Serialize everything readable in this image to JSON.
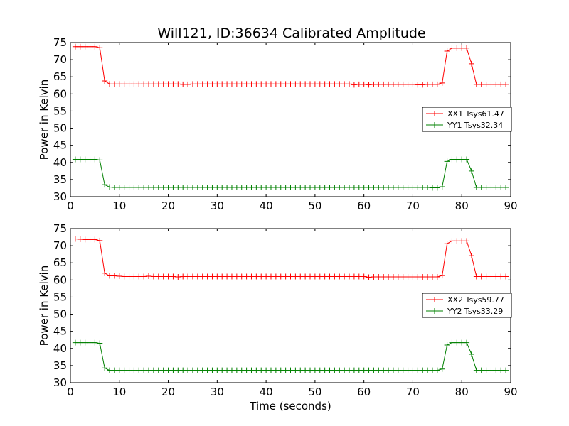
{
  "figure_title": "Will121, ID:36634 Calibrated Amplitude",
  "colors": {
    "red": "#ff0000",
    "green": "#008000",
    "axis": "#000000"
  },
  "chart_data": [
    {
      "type": "line",
      "title": "Will121, ID:36634 Calibrated Amplitude",
      "xlabel": "",
      "ylabel": "Power in Kelvin",
      "xlim": [
        0,
        90
      ],
      "ylim": [
        30,
        75
      ],
      "xticks": [
        0,
        10,
        20,
        30,
        40,
        50,
        60,
        70,
        80,
        90
      ],
      "yticks": [
        30,
        35,
        40,
        45,
        50,
        55,
        60,
        65,
        70,
        75
      ],
      "legend_position": "center-right",
      "series": [
        {
          "name": "XX1 Tsys61.47",
          "color": "#ff0000",
          "marker": "+",
          "x": [
            1,
            2,
            3,
            4,
            5,
            6,
            7,
            8,
            9,
            10,
            11,
            12,
            13,
            14,
            15,
            16,
            17,
            18,
            19,
            20,
            21,
            22,
            23,
            24,
            25,
            26,
            27,
            28,
            29,
            30,
            31,
            32,
            33,
            34,
            35,
            36,
            37,
            38,
            39,
            40,
            41,
            42,
            43,
            44,
            45,
            46,
            47,
            48,
            49,
            50,
            51,
            52,
            53,
            54,
            55,
            56,
            57,
            58,
            59,
            60,
            61,
            62,
            63,
            64,
            65,
            66,
            67,
            68,
            69,
            70,
            71,
            72,
            73,
            74,
            75,
            76,
            77,
            78,
            79,
            80,
            81,
            82,
            83,
            84,
            85,
            86,
            87,
            88,
            89
          ],
          "y": [
            73.8,
            73.8,
            73.8,
            73.8,
            73.8,
            73.5,
            63.8,
            62.9,
            62.9,
            62.9,
            62.9,
            62.9,
            62.9,
            62.9,
            62.9,
            62.9,
            62.9,
            62.9,
            62.9,
            62.9,
            62.9,
            62.9,
            62.8,
            62.8,
            62.9,
            62.9,
            62.9,
            62.9,
            62.9,
            62.9,
            62.9,
            62.9,
            62.9,
            62.9,
            62.9,
            62.9,
            62.9,
            62.9,
            62.9,
            62.9,
            62.9,
            62.9,
            62.9,
            62.9,
            62.9,
            62.9,
            62.9,
            62.9,
            62.9,
            62.9,
            62.9,
            62.9,
            62.9,
            62.9,
            62.9,
            62.9,
            62.9,
            62.7,
            62.8,
            62.8,
            62.7,
            62.8,
            62.8,
            62.8,
            62.8,
            62.8,
            62.8,
            62.8,
            62.8,
            62.8,
            62.7,
            62.7,
            62.8,
            62.8,
            62.8,
            63.2,
            72.5,
            73.4,
            73.4,
            73.4,
            73.4,
            68.8,
            62.8,
            62.8,
            62.8,
            62.8,
            62.8,
            62.8,
            62.8
          ]
        },
        {
          "name": "YY1 Tsys32.34",
          "color": "#008000",
          "marker": "+",
          "x": [
            1,
            2,
            3,
            4,
            5,
            6,
            7,
            8,
            9,
            10,
            11,
            12,
            13,
            14,
            15,
            16,
            17,
            18,
            19,
            20,
            21,
            22,
            23,
            24,
            25,
            26,
            27,
            28,
            29,
            30,
            31,
            32,
            33,
            34,
            35,
            36,
            37,
            38,
            39,
            40,
            41,
            42,
            43,
            44,
            45,
            46,
            47,
            48,
            49,
            50,
            51,
            52,
            53,
            54,
            55,
            56,
            57,
            58,
            59,
            60,
            61,
            62,
            63,
            64,
            65,
            66,
            67,
            68,
            69,
            70,
            71,
            72,
            73,
            74,
            75,
            76,
            77,
            78,
            79,
            80,
            81,
            82,
            83,
            84,
            85,
            86,
            87,
            88,
            89
          ],
          "y": [
            40.9,
            40.9,
            40.9,
            40.9,
            40.9,
            40.7,
            33.5,
            32.8,
            32.7,
            32.7,
            32.7,
            32.7,
            32.7,
            32.7,
            32.7,
            32.7,
            32.7,
            32.7,
            32.7,
            32.7,
            32.7,
            32.7,
            32.7,
            32.7,
            32.7,
            32.7,
            32.7,
            32.7,
            32.7,
            32.7,
            32.7,
            32.7,
            32.7,
            32.7,
            32.7,
            32.7,
            32.7,
            32.7,
            32.7,
            32.7,
            32.7,
            32.7,
            32.7,
            32.7,
            32.7,
            32.7,
            32.7,
            32.7,
            32.7,
            32.7,
            32.7,
            32.7,
            32.7,
            32.7,
            32.7,
            32.7,
            32.7,
            32.7,
            32.7,
            32.7,
            32.7,
            32.7,
            32.7,
            32.7,
            32.7,
            32.7,
            32.7,
            32.7,
            32.7,
            32.7,
            32.7,
            32.7,
            32.7,
            32.6,
            32.6,
            32.9,
            40.3,
            40.9,
            40.9,
            40.9,
            40.9,
            37.5,
            32.7,
            32.7,
            32.7,
            32.7,
            32.7,
            32.7,
            32.7
          ]
        }
      ]
    },
    {
      "type": "line",
      "title": "",
      "xlabel": "Time (seconds)",
      "ylabel": "Power in Kelvin",
      "xlim": [
        0,
        90
      ],
      "ylim": [
        30,
        75
      ],
      "xticks": [
        0,
        10,
        20,
        30,
        40,
        50,
        60,
        70,
        80,
        90
      ],
      "yticks": [
        30,
        35,
        40,
        45,
        50,
        55,
        60,
        65,
        70,
        75
      ],
      "legend_position": "center-right",
      "series": [
        {
          "name": "XX2 Tsys59.77",
          "color": "#ff0000",
          "marker": "+",
          "x": [
            1,
            2,
            3,
            4,
            5,
            6,
            7,
            8,
            9,
            10,
            11,
            12,
            13,
            14,
            15,
            16,
            17,
            18,
            19,
            20,
            21,
            22,
            23,
            24,
            25,
            26,
            27,
            28,
            29,
            30,
            31,
            32,
            33,
            34,
            35,
            36,
            37,
            38,
            39,
            40,
            41,
            42,
            43,
            44,
            45,
            46,
            47,
            48,
            49,
            50,
            51,
            52,
            53,
            54,
            55,
            56,
            57,
            58,
            59,
            60,
            61,
            62,
            63,
            64,
            65,
            66,
            67,
            68,
            69,
            70,
            71,
            72,
            73,
            74,
            75,
            76,
            77,
            78,
            79,
            80,
            81,
            82,
            83,
            84,
            85,
            86,
            87,
            88,
            89
          ],
          "y": [
            72.0,
            71.9,
            71.8,
            71.8,
            71.8,
            71.5,
            62.0,
            61.2,
            61.2,
            61.1,
            61.0,
            61.0,
            61.0,
            61.0,
            61.0,
            61.1,
            61.0,
            61.0,
            61.0,
            61.0,
            61.0,
            60.9,
            61.0,
            61.0,
            61.0,
            61.0,
            61.0,
            61.0,
            61.0,
            61.0,
            61.0,
            61.0,
            61.0,
            61.0,
            61.0,
            61.0,
            61.0,
            61.0,
            61.0,
            61.0,
            61.0,
            61.0,
            61.0,
            61.0,
            61.0,
            61.0,
            61.0,
            61.0,
            61.0,
            61.0,
            61.0,
            61.0,
            61.0,
            61.0,
            61.0,
            61.0,
            61.0,
            61.0,
            61.0,
            61.0,
            60.8,
            60.9,
            60.9,
            60.9,
            60.9,
            60.9,
            60.9,
            60.9,
            60.9,
            60.9,
            60.9,
            60.9,
            60.9,
            60.9,
            60.9,
            61.3,
            70.6,
            71.4,
            71.4,
            71.4,
            71.4,
            67.1,
            61.0,
            61.0,
            61.0,
            61.0,
            61.0,
            61.0,
            61.0
          ]
        },
        {
          "name": "YY2 Tsys33.29",
          "color": "#008000",
          "marker": "+",
          "x": [
            1,
            2,
            3,
            4,
            5,
            6,
            7,
            8,
            9,
            10,
            11,
            12,
            13,
            14,
            15,
            16,
            17,
            18,
            19,
            20,
            21,
            22,
            23,
            24,
            25,
            26,
            27,
            28,
            29,
            30,
            31,
            32,
            33,
            34,
            35,
            36,
            37,
            38,
            39,
            40,
            41,
            42,
            43,
            44,
            45,
            46,
            47,
            48,
            49,
            50,
            51,
            52,
            53,
            54,
            55,
            56,
            57,
            58,
            59,
            60,
            61,
            62,
            63,
            64,
            65,
            66,
            67,
            68,
            69,
            70,
            71,
            72,
            73,
            74,
            75,
            76,
            77,
            78,
            79,
            80,
            81,
            82,
            83,
            84,
            85,
            86,
            87,
            88,
            89
          ],
          "y": [
            41.7,
            41.7,
            41.7,
            41.7,
            41.7,
            41.5,
            34.3,
            33.6,
            33.6,
            33.6,
            33.6,
            33.6,
            33.6,
            33.6,
            33.6,
            33.6,
            33.6,
            33.6,
            33.6,
            33.6,
            33.6,
            33.6,
            33.6,
            33.6,
            33.6,
            33.6,
            33.6,
            33.6,
            33.6,
            33.6,
            33.6,
            33.6,
            33.6,
            33.6,
            33.6,
            33.6,
            33.6,
            33.6,
            33.6,
            33.6,
            33.6,
            33.6,
            33.6,
            33.6,
            33.6,
            33.6,
            33.6,
            33.6,
            33.6,
            33.6,
            33.6,
            33.6,
            33.6,
            33.6,
            33.6,
            33.6,
            33.6,
            33.6,
            33.6,
            33.6,
            33.6,
            33.6,
            33.6,
            33.6,
            33.6,
            33.6,
            33.6,
            33.6,
            33.6,
            33.6,
            33.6,
            33.6,
            33.6,
            33.6,
            33.6,
            34.0,
            41.0,
            41.7,
            41.7,
            41.7,
            41.7,
            38.3,
            33.6,
            33.6,
            33.6,
            33.6,
            33.6,
            33.6,
            33.6
          ]
        }
      ]
    }
  ]
}
